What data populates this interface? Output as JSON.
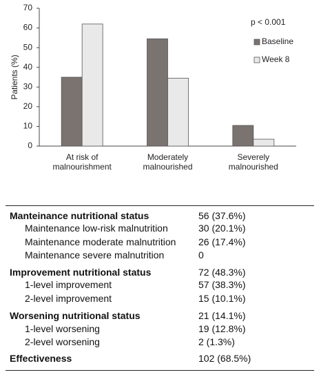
{
  "chart_data": {
    "type": "bar",
    "y_label": "Patients (%)",
    "annotation": "p < 0.001",
    "categories": [
      "At risk of malnourishment",
      "Moderately malnourished",
      "Severely malnourished"
    ],
    "series": [
      {
        "name": "Baseline",
        "color": "#7a7370",
        "values": [
          35,
          54.5,
          10.5
        ]
      },
      {
        "name": "Week 8",
        "color": "#e9e9e9",
        "values": [
          62,
          34.5,
          3.5
        ]
      }
    ],
    "ylim": [
      0,
      70
    ],
    "yticks": [
      0,
      10,
      20,
      30,
      40,
      50,
      60,
      70
    ]
  },
  "table": {
    "rows": [
      [
        "Manteinance nutritional status",
        "56 (37.6%)"
      ],
      [
        "Maintenance low-risk malnutrition",
        "30 (20.1%)"
      ],
      [
        "Maintenance moderate malnutrition",
        "26 (17.4%)"
      ],
      [
        "Maintenance severe malnutrition",
        "0"
      ],
      [
        "Improvement nutritional status",
        "72 (48.3%)"
      ],
      [
        "1-level improvement",
        "57 (38.3%)"
      ],
      [
        "2-level improvement",
        "15 (10.1%)"
      ],
      [
        "Worsening nutritional status",
        "21 (14.1%)"
      ],
      [
        "1-level worsening",
        "19 (12.8%)"
      ],
      [
        "2-level worsening",
        "2 (1.3%)"
      ],
      [
        "Effectiveness",
        "102 (68.5%)"
      ]
    ]
  }
}
